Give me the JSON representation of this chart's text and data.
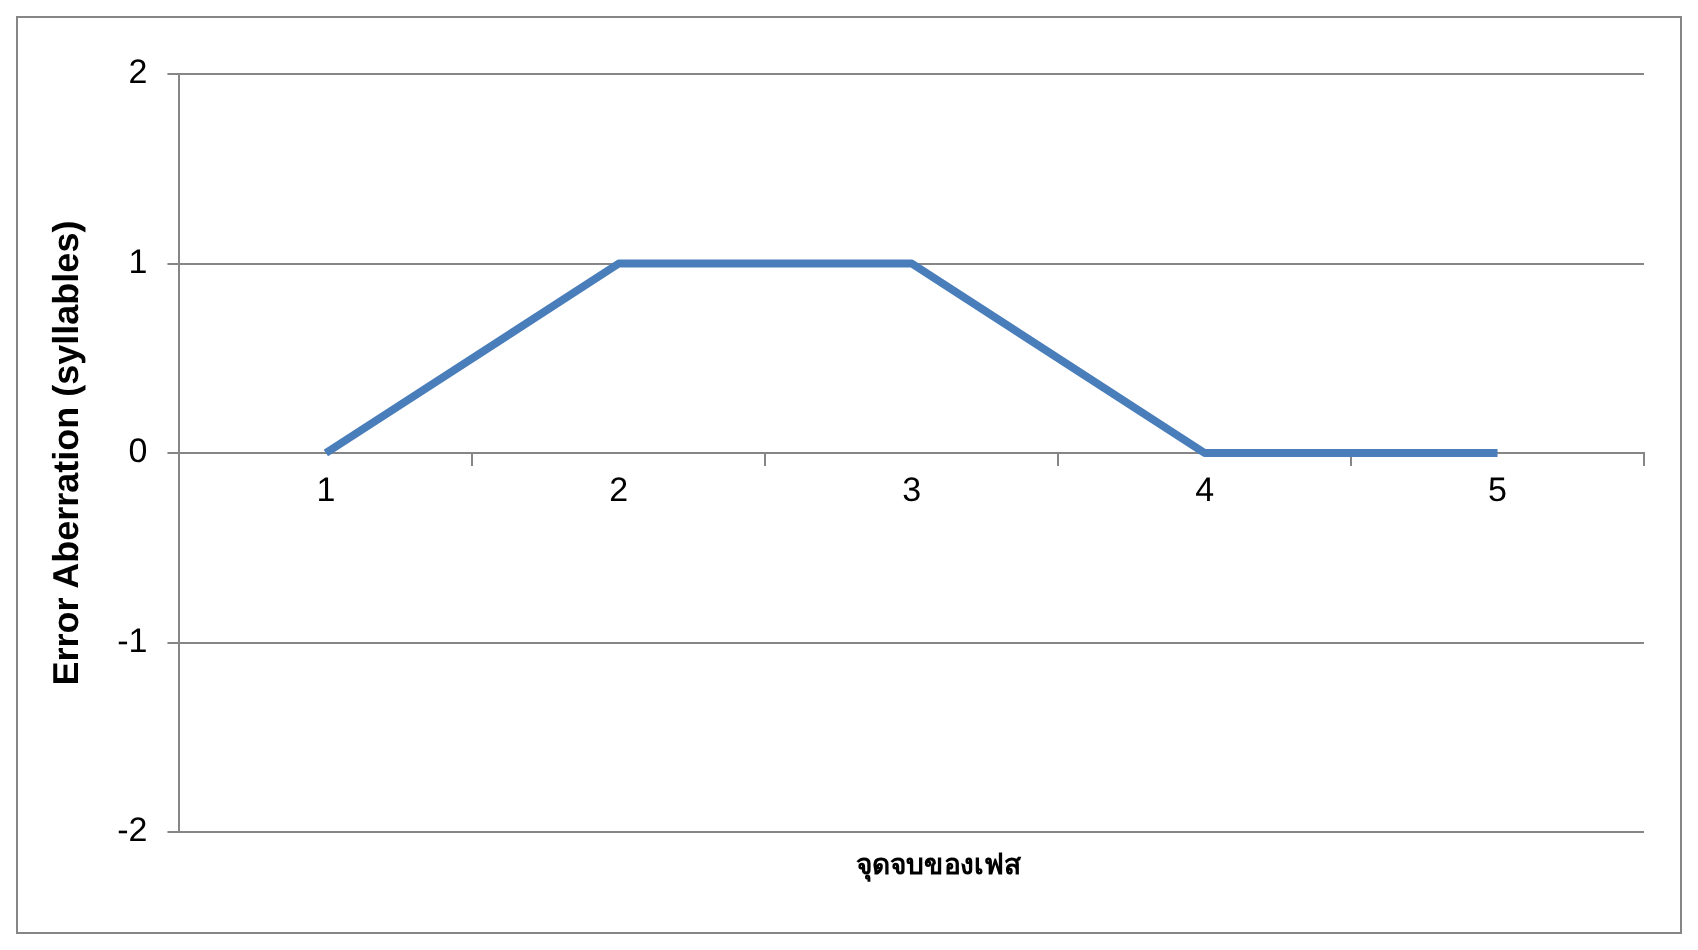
{
  "chart_data": {
    "type": "line",
    "xlabel": "จุดจบของเฟส",
    "ylabel": "Error Aberration (syllables)",
    "categories": [
      "1",
      "2",
      "3",
      "4",
      "5"
    ],
    "series": [
      {
        "color": "#4a7ebb",
        "values": [
          0,
          1,
          1,
          0,
          0
        ]
      }
    ],
    "ylim": [
      -2,
      2
    ],
    "yticks": [
      -2,
      -1,
      0,
      1,
      2
    ],
    "grid": "y",
    "legend": false,
    "marker": "none",
    "line_style": "solid"
  }
}
